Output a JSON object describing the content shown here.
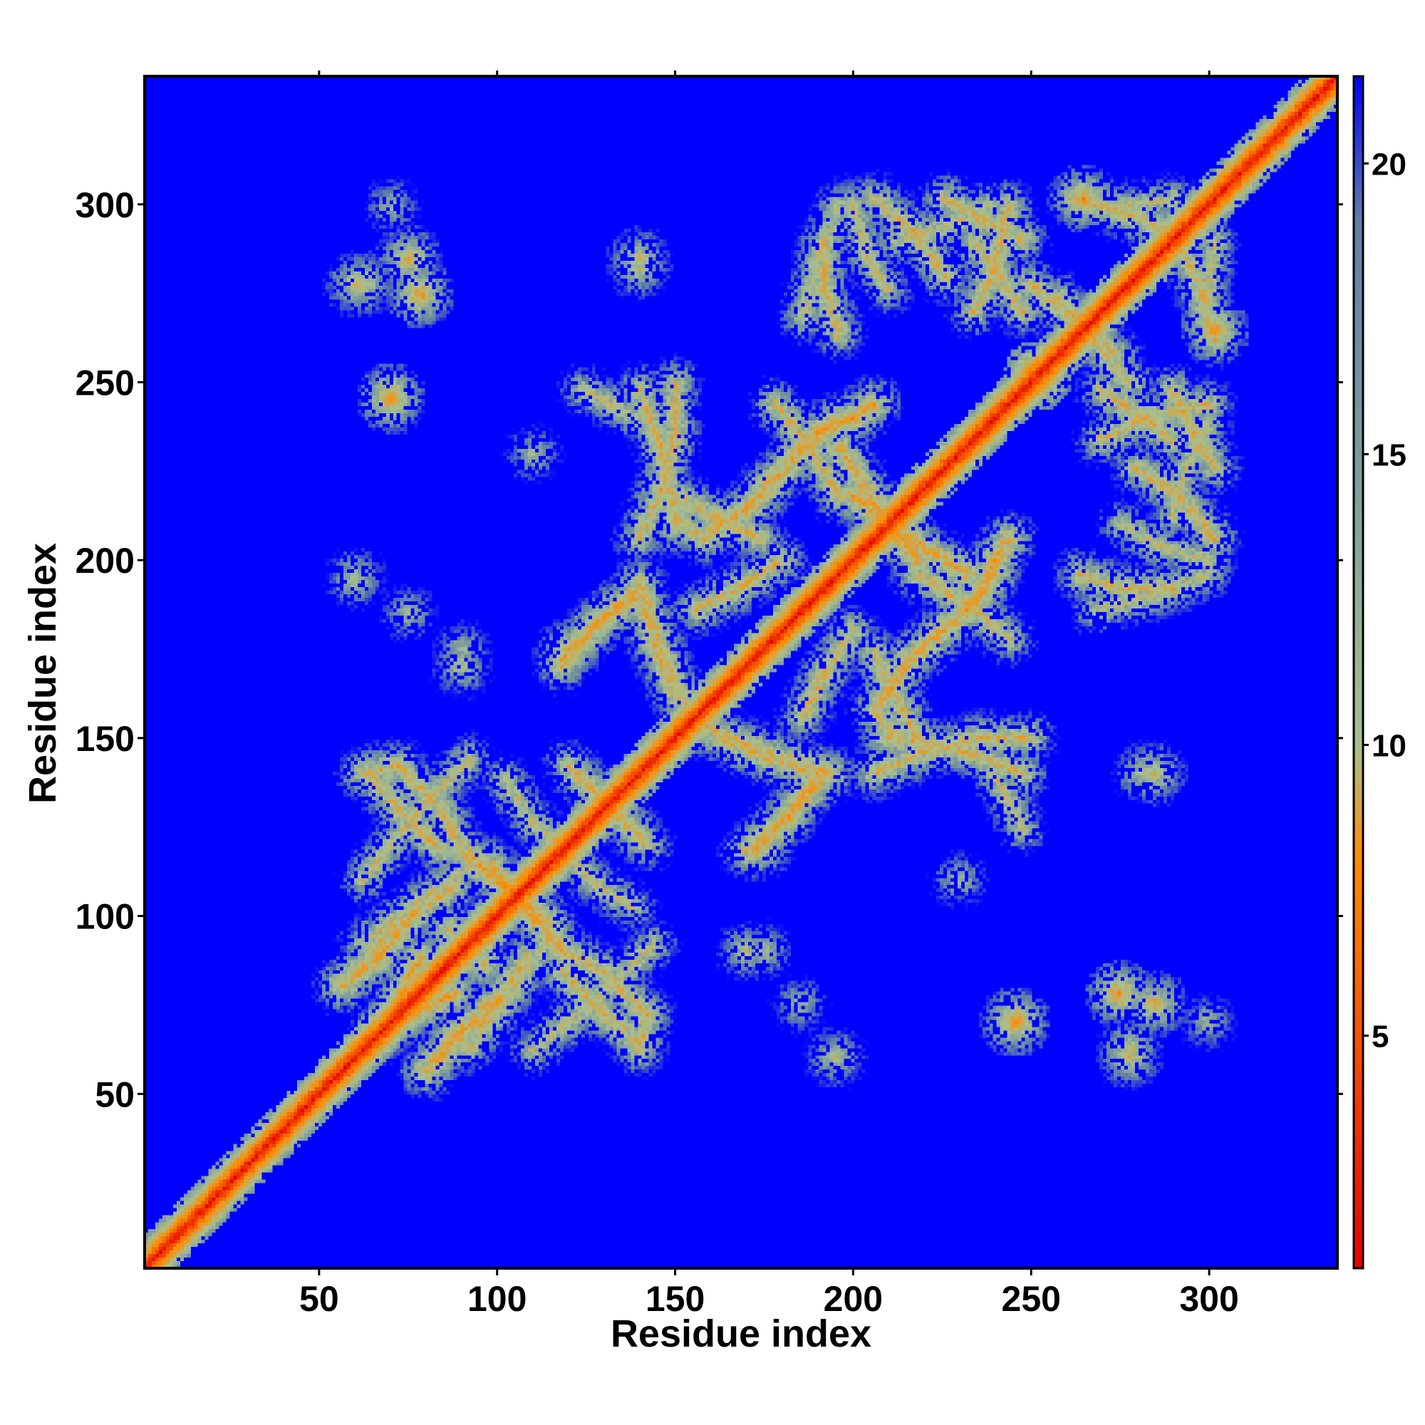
{
  "chart_data": {
    "type": "heatmap",
    "title": "",
    "xlabel": "Residue index",
    "ylabel": "Residue index",
    "xlim": [
      1,
      336
    ],
    "ylim": [
      1,
      336
    ],
    "x_ticks": [
      50,
      100,
      150,
      200,
      250,
      300
    ],
    "y_ticks": [
      50,
      100,
      150,
      200,
      250,
      300
    ],
    "colorbar": {
      "range": [
        1,
        21.5
      ],
      "ticks": [
        5,
        10,
        15,
        20
      ],
      "colors": [
        "#e60000",
        "#ff8c00",
        "#a8c090",
        "#6080a8",
        "#0000ff"
      ]
    },
    "background_value": 21,
    "background_color": "#0000ff",
    "diagonal": {
      "from": 1,
      "to": 336,
      "value": 2
    },
    "contact_bands": [
      {
        "points": [
          [
            56,
            80
          ],
          [
            66,
            88
          ],
          [
            76,
            100
          ]
        ],
        "value": 8
      },
      {
        "points": [
          [
            90,
            118
          ],
          [
            102,
            108
          ],
          [
            114,
            98
          ]
        ],
        "value": 8
      },
      {
        "points": [
          [
            64,
            140
          ],
          [
            72,
            130
          ],
          [
            84,
            118
          ]
        ],
        "value": 9
      },
      {
        "points": [
          [
            62,
            110
          ],
          [
            70,
            120
          ],
          [
            80,
            132
          ],
          [
            92,
            144
          ]
        ],
        "value": 10
      },
      {
        "points": [
          [
            92,
            62
          ],
          [
            104,
            78
          ],
          [
            116,
            96
          ]
        ],
        "value": 10
      },
      {
        "points": [
          [
            102,
            138
          ],
          [
            110,
            126
          ],
          [
            122,
            116
          ]
        ],
        "value": 10
      },
      {
        "points": [
          [
            84,
            60
          ],
          [
            96,
            70
          ],
          [
            108,
            88
          ]
        ],
        "value": 9
      },
      {
        "points": [
          [
            118,
            90
          ],
          [
            130,
            84
          ],
          [
            142,
            72
          ],
          [
            140,
            62
          ]
        ],
        "value": 9
      },
      {
        "points": [
          [
            120,
            142
          ],
          [
            130,
            132
          ],
          [
            140,
            122
          ]
        ],
        "value": 9
      },
      {
        "points": [
          [
            118,
            172
          ],
          [
            128,
            182
          ],
          [
            140,
            192
          ]
        ],
        "value": 8
      },
      {
        "points": [
          [
            140,
            194
          ],
          [
            148,
            170
          ],
          [
            156,
            152
          ]
        ],
        "value": 9
      },
      {
        "points": [
          [
            140,
            248
          ],
          [
            146,
            232
          ],
          [
            150,
            212
          ],
          [
            158,
            206
          ]
        ],
        "value": 9
      },
      {
        "points": [
          [
            160,
            208
          ],
          [
            172,
            216
          ],
          [
            186,
            232
          ],
          [
            196,
            240
          ]
        ],
        "value": 8
      },
      {
        "points": [
          [
            190,
            140
          ],
          [
            176,
            144
          ],
          [
            162,
            150
          ]
        ],
        "value": 9
      },
      {
        "points": [
          [
            170,
            118
          ],
          [
            182,
            128
          ],
          [
            190,
            140
          ]
        ],
        "value": 9
      },
      {
        "points": [
          [
            196,
            232
          ],
          [
            206,
            216
          ],
          [
            218,
            200
          ]
        ],
        "value": 8
      },
      {
        "points": [
          [
            200,
            180
          ],
          [
            192,
            168
          ],
          [
            186,
            156
          ]
        ],
        "value": 9
      },
      {
        "points": [
          [
            196,
            300
          ],
          [
            190,
            284
          ],
          [
            186,
            268
          ]
        ],
        "value": 10
      },
      {
        "points": [
          [
            206,
            174
          ],
          [
            212,
            162
          ],
          [
            218,
            150
          ]
        ],
        "value": 9
      },
      {
        "points": [
          [
            206,
            140
          ],
          [
            220,
            146
          ],
          [
            236,
            150
          ],
          [
            250,
            150
          ]
        ],
        "value": 9
      },
      {
        "points": [
          [
            218,
            196
          ],
          [
            232,
            188
          ],
          [
            244,
            178
          ]
        ],
        "value": 9
      },
      {
        "points": [
          [
            236,
            190
          ],
          [
            240,
            200
          ],
          [
            244,
            206
          ]
        ],
        "value": 8
      },
      {
        "points": [
          [
            234,
            270
          ],
          [
            240,
            282
          ],
          [
            244,
            300
          ]
        ],
        "value": 9
      },
      {
        "points": [
          [
            212,
            290
          ],
          [
            226,
            294
          ],
          [
            238,
            300
          ]
        ],
        "value": 10
      },
      {
        "points": [
          [
            250,
            278
          ],
          [
            262,
            268
          ],
          [
            274,
            258
          ]
        ],
        "value": 9
      },
      {
        "points": [
          [
            262,
            302
          ],
          [
            276,
            298
          ],
          [
            290,
            292
          ]
        ],
        "value": 9
      },
      {
        "points": [
          [
            270,
            248
          ],
          [
            282,
            240
          ],
          [
            290,
            234
          ]
        ],
        "value": 9
      },
      {
        "points": [
          [
            240,
            140
          ],
          [
            244,
            132
          ],
          [
            248,
            124
          ]
        ],
        "value": 10
      },
      {
        "points": [
          [
            280,
            226
          ],
          [
            292,
            218
          ],
          [
            302,
            206
          ]
        ],
        "value": 9
      },
      {
        "points": [
          [
            290,
            248
          ],
          [
            296,
            236
          ],
          [
            302,
            226
          ]
        ],
        "value": 9
      },
      {
        "points": [
          [
            300,
            266
          ],
          [
            300,
            276
          ],
          [
            302,
            290
          ]
        ],
        "value": 10
      },
      {
        "points": [
          [
            264,
            196
          ],
          [
            276,
            192
          ],
          [
            290,
            192
          ]
        ],
        "value": 9
      },
      {
        "points": [
          [
            276,
            210
          ],
          [
            286,
            204
          ],
          [
            300,
            200
          ]
        ],
        "value": 10
      },
      {
        "points": [
          [
            66,
            66
          ],
          [
            76,
            72
          ],
          [
            88,
            78
          ]
        ],
        "value": 8
      }
    ],
    "contact_spots": [
      {
        "x": 70,
        "y": 246,
        "value": 7
      },
      {
        "x": 78,
        "y": 275,
        "value": 7
      },
      {
        "x": 62,
        "y": 278,
        "value": 9
      },
      {
        "x": 140,
        "y": 285,
        "value": 9
      },
      {
        "x": 200,
        "y": 300,
        "value": 10
      },
      {
        "x": 265,
        "y": 302,
        "value": 7
      },
      {
        "x": 285,
        "y": 75,
        "value": 8
      },
      {
        "x": 278,
        "y": 60,
        "value": 9
      },
      {
        "x": 245,
        "y": 70,
        "value": 8
      },
      {
        "x": 150,
        "y": 210,
        "value": 9
      },
      {
        "x": 175,
        "y": 90,
        "value": 11
      },
      {
        "x": 185,
        "y": 75,
        "value": 11
      },
      {
        "x": 120,
        "y": 175,
        "value": 9
      },
      {
        "x": 90,
        "y": 170,
        "value": 10
      },
      {
        "x": 60,
        "y": 195,
        "value": 10
      },
      {
        "x": 282,
        "y": 140,
        "value": 10
      },
      {
        "x": 230,
        "y": 110,
        "value": 11
      },
      {
        "x": 96,
        "y": 86,
        "value": 9
      },
      {
        "x": 300,
        "y": 70,
        "value": 11
      },
      {
        "x": 252,
        "y": 252,
        "value": 4
      }
    ]
  }
}
